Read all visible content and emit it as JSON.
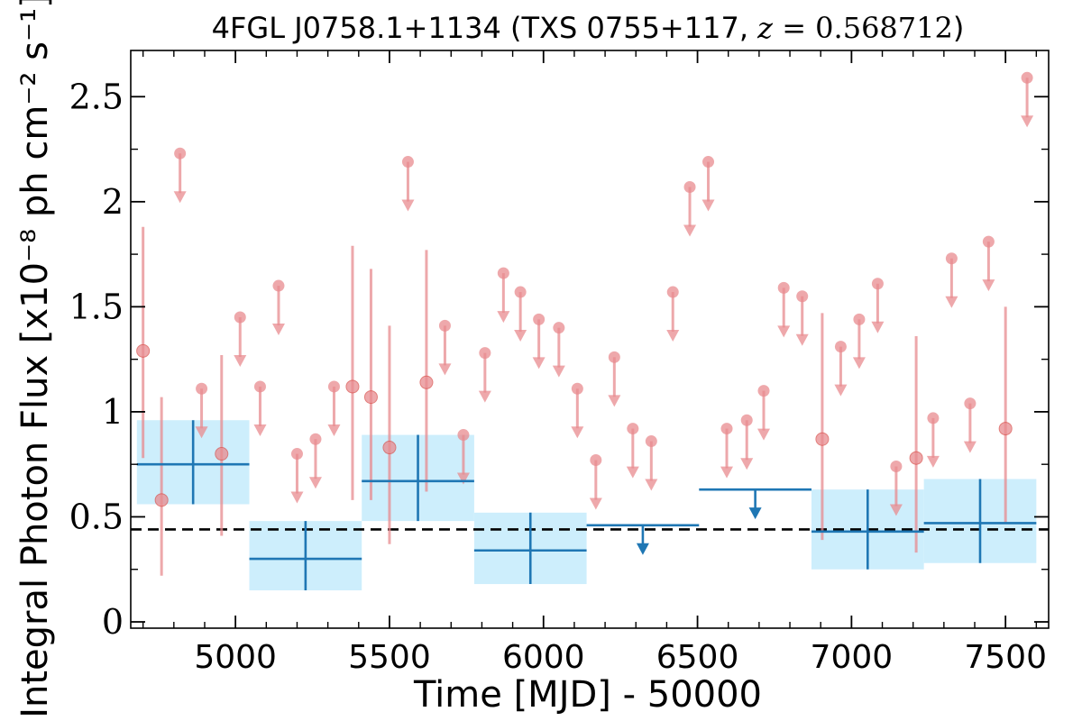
{
  "chart_data": {
    "type": "scatter",
    "title": "4FGL J0758.1+1134 (TXS 0755+117, z = 0.568712)",
    "title_parts": {
      "prefix": "4FGL J0758.1+1134 (TXS 0755+117, ",
      "z_symbol": "z",
      "z_eq": " = 0.568712",
      "suffix": ")"
    },
    "xlabel": "Time [MJD] - 50000",
    "ylabel": "Integral Photon Flux [x10⁻⁸ ph cm⁻² s⁻¹]",
    "xlim": [
      4660,
      7640
    ],
    "ylim": [
      -0.03,
      2.72
    ],
    "x_ticks": [
      5000,
      5500,
      6000,
      6500,
      7000,
      7500
    ],
    "x_tick_labels": [
      "5000",
      "5500",
      "6000",
      "6500",
      "7000",
      "7500"
    ],
    "y_ticks": [
      0,
      0.5,
      1,
      1.5,
      2,
      2.5
    ],
    "y_tick_labels": [
      "0",
      "0.5",
      "1",
      "1.5",
      "2",
      "2.5"
    ],
    "x_minor_step": 100,
    "y_minor_step": 0.25,
    "grid": false,
    "reference_line": {
      "y": 0.44,
      "style": "dashed",
      "color": "#000000"
    },
    "colors": {
      "short_bins": "#e88b8f",
      "long_bins": "#1f77b4",
      "long_band": "#cdeefc",
      "frame": "#000000"
    },
    "series": [
      {
        "style": "short-bins",
        "detections": [
          {
            "x": 4700,
            "y": 1.29,
            "ylow": 0.78,
            "yhigh": 1.88
          },
          {
            "x": 4760,
            "y": 0.58,
            "ylow": 0.22,
            "yhigh": 1.07
          },
          {
            "x": 4955,
            "y": 0.8,
            "ylow": 0.41,
            "yhigh": 1.27
          },
          {
            "x": 5380,
            "y": 1.12,
            "ylow": 0.58,
            "yhigh": 1.79
          },
          {
            "x": 5440,
            "y": 1.07,
            "ylow": 0.58,
            "yhigh": 1.68
          },
          {
            "x": 5500,
            "y": 0.83,
            "ylow": 0.37,
            "yhigh": 1.41
          },
          {
            "x": 5620,
            "y": 1.14,
            "ylow": 0.62,
            "yhigh": 1.77
          },
          {
            "x": 6905,
            "y": 0.87,
            "ylow": 0.39,
            "yhigh": 1.47
          },
          {
            "x": 7210,
            "y": 0.78,
            "ylow": 0.33,
            "yhigh": 1.36
          },
          {
            "x": 7500,
            "y": 0.92,
            "ylow": 0.47,
            "yhigh": 1.5
          }
        ],
        "upper_limits": [
          {
            "x": 4820,
            "y": 2.23
          },
          {
            "x": 4890,
            "y": 1.11
          },
          {
            "x": 5015,
            "y": 1.45
          },
          {
            "x": 5080,
            "y": 1.12
          },
          {
            "x": 5140,
            "y": 1.6
          },
          {
            "x": 5200,
            "y": 0.8
          },
          {
            "x": 5260,
            "y": 0.87
          },
          {
            "x": 5320,
            "y": 1.12
          },
          {
            "x": 5560,
            "y": 2.19
          },
          {
            "x": 5680,
            "y": 1.41
          },
          {
            "x": 5740,
            "y": 0.89
          },
          {
            "x": 5810,
            "y": 1.28
          },
          {
            "x": 5870,
            "y": 1.66
          },
          {
            "x": 5925,
            "y": 1.57
          },
          {
            "x": 5985,
            "y": 1.44
          },
          {
            "x": 6050,
            "y": 1.4
          },
          {
            "x": 6110,
            "y": 1.11
          },
          {
            "x": 6170,
            "y": 0.77
          },
          {
            "x": 6230,
            "y": 1.26
          },
          {
            "x": 6290,
            "y": 0.92
          },
          {
            "x": 6350,
            "y": 0.86
          },
          {
            "x": 6420,
            "y": 1.57
          },
          {
            "x": 6475,
            "y": 2.07
          },
          {
            "x": 6535,
            "y": 2.19
          },
          {
            "x": 6595,
            "y": 0.92
          },
          {
            "x": 6660,
            "y": 0.96
          },
          {
            "x": 6715,
            "y": 1.1
          },
          {
            "x": 6780,
            "y": 1.59
          },
          {
            "x": 6840,
            "y": 1.55
          },
          {
            "x": 6965,
            "y": 1.31
          },
          {
            "x": 7025,
            "y": 1.44
          },
          {
            "x": 7085,
            "y": 1.61
          },
          {
            "x": 7145,
            "y": 0.74
          },
          {
            "x": 7265,
            "y": 0.97
          },
          {
            "x": 7325,
            "y": 1.73
          },
          {
            "x": 7385,
            "y": 1.04
          },
          {
            "x": 7445,
            "y": 1.81
          },
          {
            "x": 7570,
            "y": 2.59
          }
        ]
      },
      {
        "style": "long-bins",
        "detections": [
          {
            "x_start": 4680,
            "x_end": 5045,
            "y": 0.75,
            "ylow": 0.56,
            "yhigh": 0.96
          },
          {
            "x_start": 5045,
            "x_end": 5410,
            "y": 0.3,
            "ylow": 0.15,
            "yhigh": 0.48
          },
          {
            "x_start": 5410,
            "x_end": 5775,
            "y": 0.67,
            "ylow": 0.48,
            "yhigh": 0.89
          },
          {
            "x_start": 5775,
            "x_end": 6140,
            "y": 0.34,
            "ylow": 0.18,
            "yhigh": 0.52
          },
          {
            "x_start": 6870,
            "x_end": 7235,
            "y": 0.43,
            "ylow": 0.25,
            "yhigh": 0.63
          },
          {
            "x_start": 7235,
            "x_end": 7600,
            "y": 0.47,
            "ylow": 0.28,
            "yhigh": 0.68
          }
        ],
        "upper_limits": [
          {
            "x_start": 6140,
            "x_end": 6505,
            "y": 0.46
          },
          {
            "x_start": 6505,
            "x_end": 6870,
            "y": 0.63
          }
        ]
      }
    ]
  }
}
